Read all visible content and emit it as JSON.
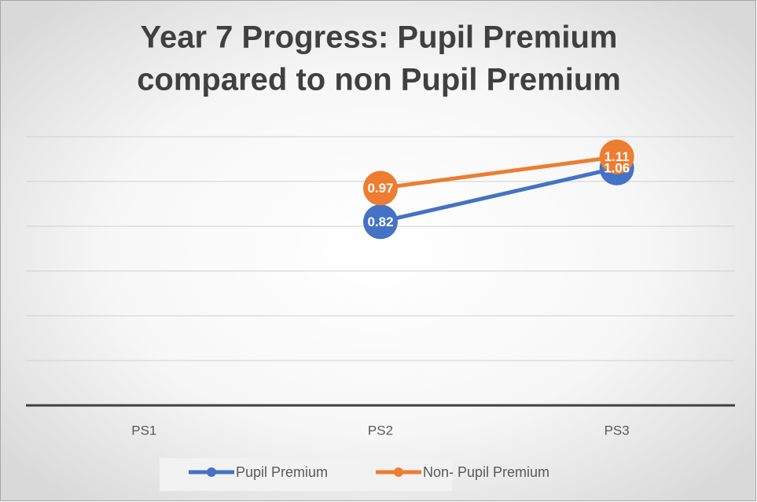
{
  "chart_data": {
    "type": "line",
    "title": [
      "Year 7 Progress: Pupil Premium",
      "compared to non Pupil Premium"
    ],
    "categories": [
      "PS1",
      "PS2",
      "PS3"
    ],
    "series": [
      {
        "name": "Pupil Premium",
        "color": "#4472c4",
        "values": [
          null,
          0.82,
          1.06
        ]
      },
      {
        "name": "Non- Pupil Premium",
        "color": "#ed7d31",
        "values": [
          null,
          0.97,
          1.11
        ]
      }
    ],
    "ylim": [
      0,
      1.2
    ],
    "yticks": [
      0,
      0.2,
      0.4,
      0.6,
      0.8,
      1,
      1.2
    ],
    "grid": true,
    "legend": "bottom"
  }
}
